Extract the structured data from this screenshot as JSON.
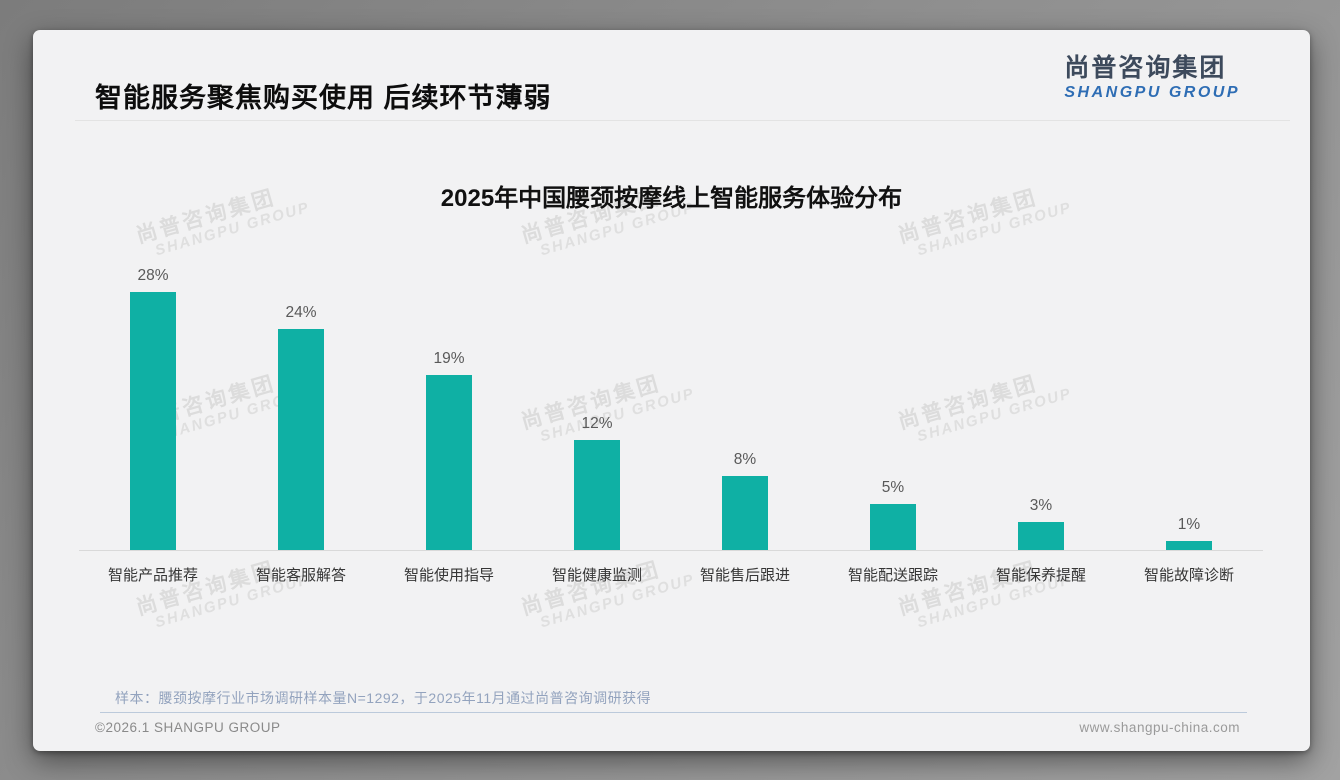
{
  "page": {
    "slide_title": "智能服务聚焦购买使用 后续环节薄弱",
    "logo": {
      "cn": "尚普咨询集团",
      "en": "SHANGPU GROUP"
    },
    "watermark": {
      "cn": "尚普咨询集团",
      "en": "SHANGPU GROUP"
    },
    "note": "样本：腰颈按摩行业市场调研样本量N=1292，于2025年11月通过尚普咨询调研获得",
    "footer": {
      "copyright": "©2026.1 SHANGPU GROUP",
      "website": "www.shangpu-china.com"
    }
  },
  "colors": {
    "bar": "#0fb0a4",
    "logo_cn": "#3d4a5c",
    "logo_en": "#2e6db4",
    "note_text": "#93a3be",
    "slide_bg": "#f2f2f3"
  },
  "chart_data": {
    "type": "bar",
    "title": "2025年中国腰颈按摩线上智能服务体验分布",
    "categories": [
      "智能产品推荐",
      "智能客服解答",
      "智能使用指导",
      "智能健康监测",
      "智能售后跟进",
      "智能配送跟踪",
      "智能保养提醒",
      "智能故障诊断"
    ],
    "values": [
      28,
      24,
      19,
      12,
      8,
      5,
      3,
      1
    ],
    "unit": "%",
    "xlabel": "",
    "ylabel": "",
    "ylim": [
      0,
      30
    ],
    "grid": false,
    "legend": false,
    "value_labels": "above bars",
    "bar_color": "#0fb0a4"
  }
}
